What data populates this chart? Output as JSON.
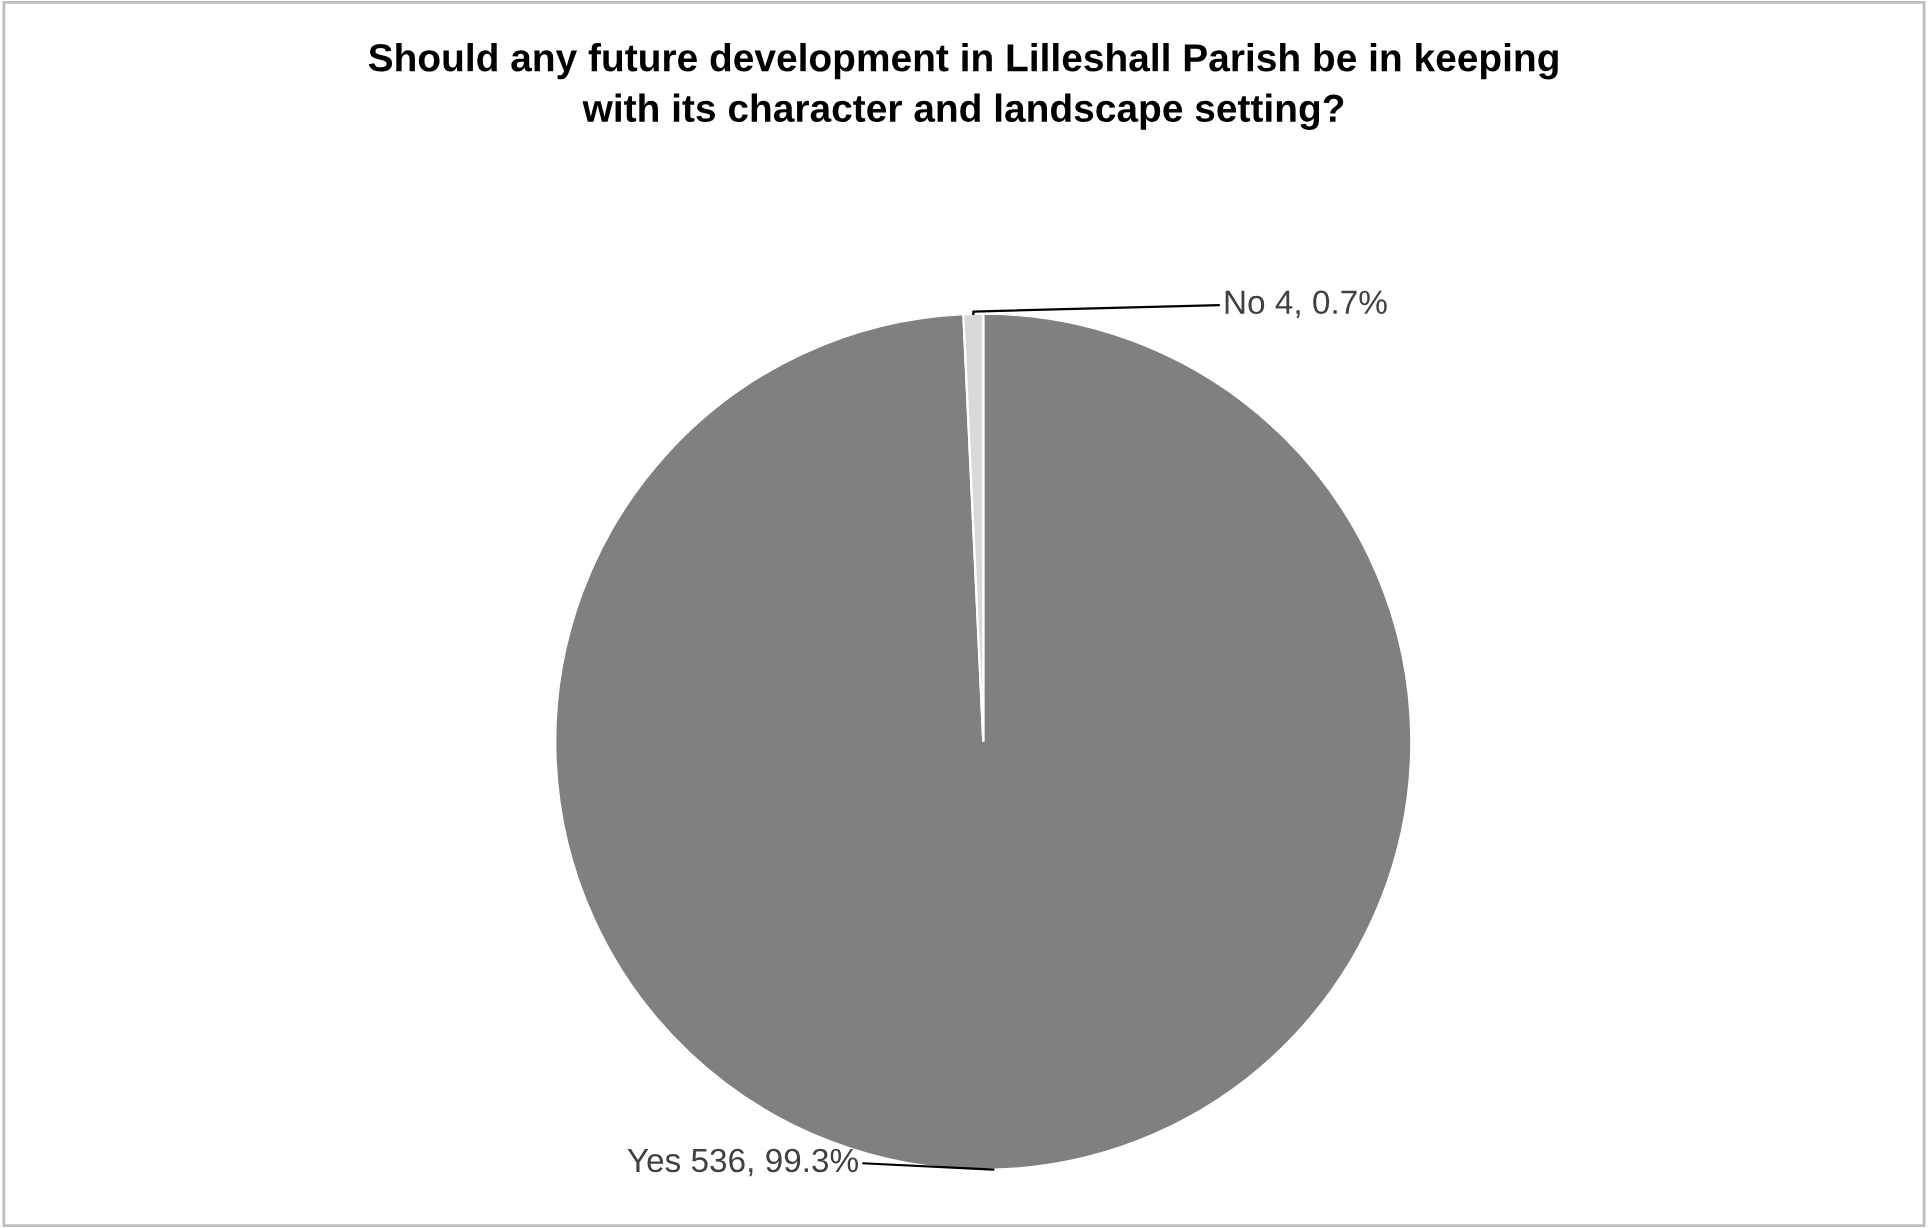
{
  "chart_data": {
    "type": "pie",
    "title": "Should any future development in Lilleshall Parish be in keeping\nwith its character and landscape setting?",
    "categories": [
      "Yes",
      "No"
    ],
    "values": [
      536,
      4
    ],
    "colors": [
      "#808080",
      "#d9d9d9"
    ],
    "value_labels": [
      "536, 99.3%",
      "4, 0.7%"
    ],
    "legend": false
  }
}
